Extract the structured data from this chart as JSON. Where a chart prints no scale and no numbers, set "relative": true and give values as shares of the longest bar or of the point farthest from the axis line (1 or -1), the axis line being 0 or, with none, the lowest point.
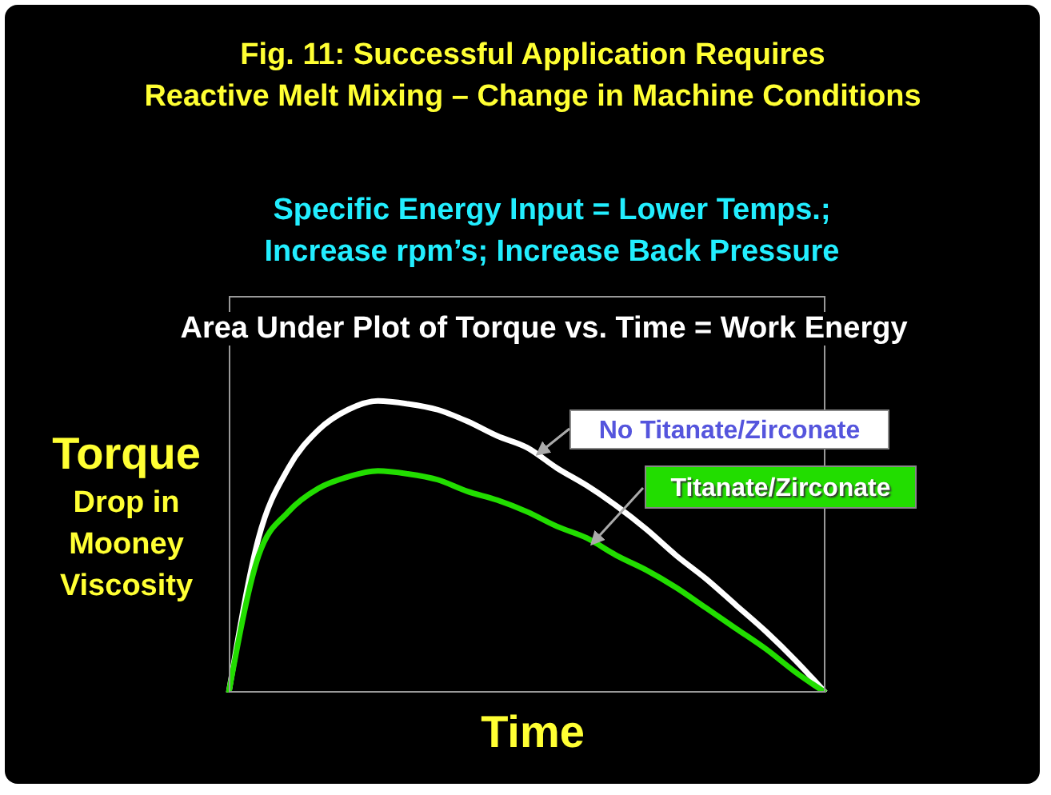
{
  "chart_data": {
    "type": "line",
    "title": "Fig. 11: Successful Application Requires\nReactive Melt Mixing – Change in Machine Conditions",
    "subtitle": "Specific Energy Input = Lower Temps.;\nIncrease rpm’s; Increase Back Pressure",
    "annotations": [
      "Area Under Plot of Torque vs. Time = Work Energy"
    ],
    "xlabel": "Time",
    "ylabel": "Torque\nDrop in\nMooney\nViscosity",
    "relative": true,
    "legend": false,
    "grid": false,
    "marker": "none",
    "line_style": "solid",
    "categories": [
      null,
      null,
      null,
      null,
      null,
      null,
      null,
      null,
      null,
      null,
      null,
      null,
      null,
      null,
      null,
      null,
      null,
      null,
      null,
      null,
      null
    ],
    "series": [
      {
        "name": "No Titanate/Zirconate",
        "color": "#ffffff",
        "values": [
          0,
          0.53,
          0.77,
          0.9,
          0.97,
          1,
          0.99,
          0.97,
          0.93,
          0.88,
          0.84,
          0.77,
          0.71,
          0.64,
          0.56,
          0.47,
          0.39,
          0.3,
          0.21,
          0.11,
          0
        ]
      },
      {
        "name": "Titanate/Zirconate",
        "color": "#22dd00",
        "values": [
          0,
          0.47,
          0.62,
          0.7,
          0.74,
          0.76,
          0.75,
          0.73,
          0.69,
          0.66,
          0.62,
          0.57,
          0.53,
          0.47,
          0.42,
          0.36,
          0.29,
          0.22,
          0.15,
          0.07,
          0
        ]
      }
    ]
  }
}
